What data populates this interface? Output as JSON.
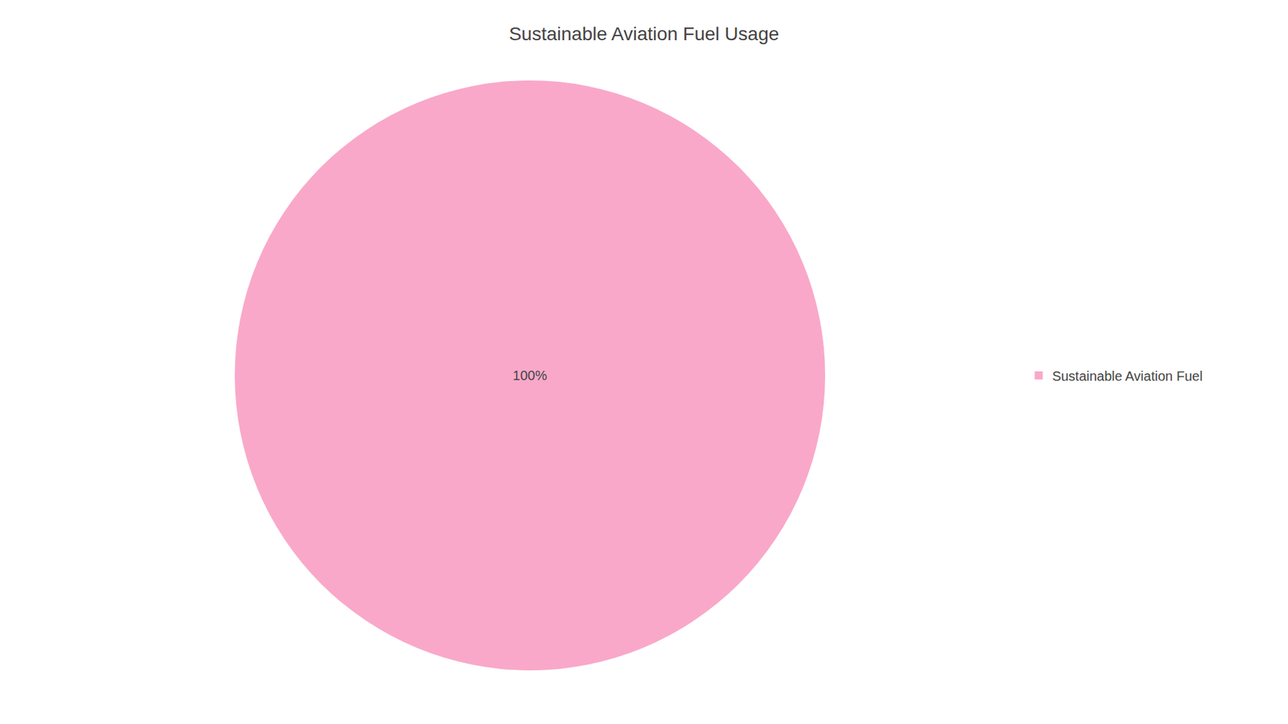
{
  "chart_data": {
    "type": "pie",
    "title": "Sustainable Aviation Fuel Usage",
    "categories": [
      "Sustainable Aviation Fuel"
    ],
    "values": [
      100
    ],
    "value_labels": [
      "100%"
    ],
    "colors": [
      "#F9A8C9"
    ],
    "data_labels": true,
    "legend": "right"
  }
}
